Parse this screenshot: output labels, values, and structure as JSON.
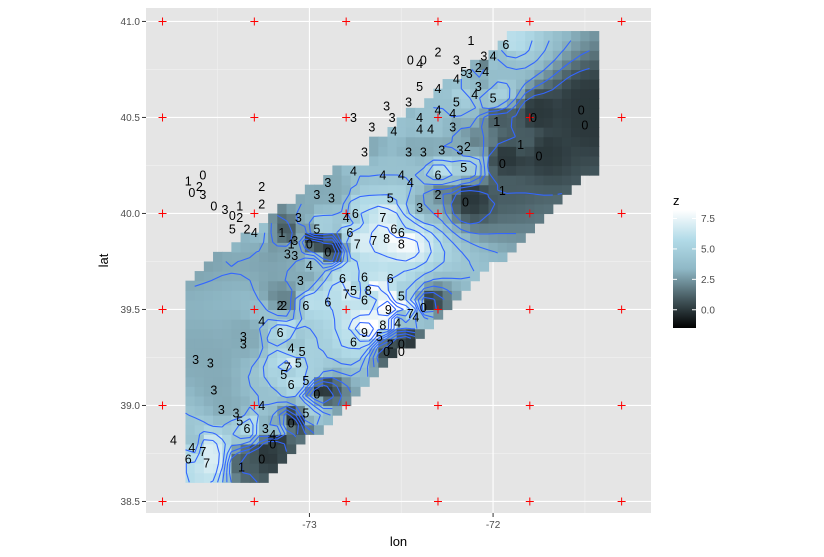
{
  "chart_data": {
    "type": "heatmap",
    "title": "",
    "xlabel": "lon",
    "ylabel": "lat",
    "xlim": [
      -73.89,
      -71.14
    ],
    "ylim": [
      38.44,
      41.07
    ],
    "x_ticks": [
      -73,
      -72
    ],
    "x_tick_labels": [
      "-73",
      "-72"
    ],
    "y_ticks": [
      38.5,
      39.0,
      39.5,
      40.0,
      40.5,
      41.0
    ],
    "y_tick_labels": [
      "38.5",
      "39.0",
      "39.5",
      "40.0",
      "40.5",
      "41.0"
    ],
    "grid": true,
    "panel_background": "#e5e5e5",
    "legend": {
      "title": "z",
      "position": "right",
      "breaks": [
        0,
        2.5,
        5,
        7.5
      ],
      "labels": [
        "0.0",
        "2.5",
        "5.0",
        "7.5"
      ],
      "limits": [
        -1.5,
        8.2
      ],
      "colors": [
        "#000000",
        "#465a60",
        "#8fb8c6",
        "#b2dbe8",
        "#ffffff"
      ]
    },
    "contour_color": "#3366ff",
    "grid_points_color": "#ff0000",
    "grid_points": {
      "lon": [
        -73.8,
        -73.3,
        -72.8,
        -72.3,
        -71.8,
        -71.3
      ],
      "lat": [
        38.5,
        39.0,
        39.5,
        40.0,
        40.5,
        41.0
      ]
    },
    "observations": [
      {
        "lon": -72.12,
        "lat": 40.9,
        "z": 1
      },
      {
        "lon": -71.93,
        "lat": 40.88,
        "z": 6
      },
      {
        "lon": -72.45,
        "lat": 40.8,
        "z": 0
      },
      {
        "lon": -72.38,
        "lat": 40.8,
        "z": 0
      },
      {
        "lon": -72.4,
        "lat": 40.78,
        "z": 4
      },
      {
        "lon": -72.2,
        "lat": 40.8,
        "z": 3
      },
      {
        "lon": -72.3,
        "lat": 40.84,
        "z": 2
      },
      {
        "lon": -72.08,
        "lat": 40.76,
        "z": 2
      },
      {
        "lon": -72.16,
        "lat": 40.74,
        "z": 5
      },
      {
        "lon": -72.04,
        "lat": 40.74,
        "z": 4
      },
      {
        "lon": -72.13,
        "lat": 40.73,
        "z": 3
      },
      {
        "lon": -72.05,
        "lat": 40.82,
        "z": 3
      },
      {
        "lon": -72.0,
        "lat": 40.82,
        "z": 4
      },
      {
        "lon": -72.2,
        "lat": 40.7,
        "z": 4
      },
      {
        "lon": -72.4,
        "lat": 40.66,
        "z": 5
      },
      {
        "lon": -72.2,
        "lat": 40.58,
        "z": 5
      },
      {
        "lon": -72.3,
        "lat": 40.65,
        "z": 4
      },
      {
        "lon": -72.1,
        "lat": 40.62,
        "z": 4
      },
      {
        "lon": -72.08,
        "lat": 40.66,
        "z": 3
      },
      {
        "lon": -72.0,
        "lat": 40.6,
        "z": 5
      },
      {
        "lon": -72.58,
        "lat": 40.56,
        "z": 3
      },
      {
        "lon": -72.55,
        "lat": 40.5,
        "z": 3
      },
      {
        "lon": -72.46,
        "lat": 40.58,
        "z": 3
      },
      {
        "lon": -72.4,
        "lat": 40.5,
        "z": 4
      },
      {
        "lon": -72.3,
        "lat": 40.54,
        "z": 4
      },
      {
        "lon": -72.22,
        "lat": 40.52,
        "z": 4
      },
      {
        "lon": -72.34,
        "lat": 40.44,
        "z": 4
      },
      {
        "lon": -72.22,
        "lat": 40.45,
        "z": 3
      },
      {
        "lon": -72.4,
        "lat": 40.44,
        "z": 4
      },
      {
        "lon": -72.76,
        "lat": 40.5,
        "z": 3
      },
      {
        "lon": -72.66,
        "lat": 40.45,
        "z": 3
      },
      {
        "lon": -72.54,
        "lat": 40.43,
        "z": 4
      },
      {
        "lon": -71.98,
        "lat": 40.48,
        "z": 1
      },
      {
        "lon": -71.78,
        "lat": 40.5,
        "z": 0
      },
      {
        "lon": -71.52,
        "lat": 40.54,
        "z": 0
      },
      {
        "lon": -71.5,
        "lat": 40.46,
        "z": 0
      },
      {
        "lon": -72.38,
        "lat": 40.32,
        "z": 3
      },
      {
        "lon": -72.28,
        "lat": 40.33,
        "z": 3
      },
      {
        "lon": -72.46,
        "lat": 40.32,
        "z": 3
      },
      {
        "lon": -72.18,
        "lat": 40.33,
        "z": 3
      },
      {
        "lon": -72.14,
        "lat": 40.35,
        "z": 2
      },
      {
        "lon": -72.7,
        "lat": 40.32,
        "z": 3
      },
      {
        "lon": -71.85,
        "lat": 40.36,
        "z": 1
      },
      {
        "lon": -71.75,
        "lat": 40.3,
        "z": 0
      },
      {
        "lon": -71.95,
        "lat": 40.26,
        "z": 0
      },
      {
        "lon": -72.16,
        "lat": 40.24,
        "z": 5
      },
      {
        "lon": -72.3,
        "lat": 40.2,
        "z": 6
      },
      {
        "lon": -72.5,
        "lat": 40.2,
        "z": 4
      },
      {
        "lon": -72.6,
        "lat": 40.2,
        "z": 4
      },
      {
        "lon": -72.76,
        "lat": 40.22,
        "z": 4
      },
      {
        "lon": -72.9,
        "lat": 40.16,
        "z": 3
      },
      {
        "lon": -72.96,
        "lat": 40.1,
        "z": 3
      },
      {
        "lon": -72.88,
        "lat": 40.08,
        "z": 3
      },
      {
        "lon": -72.45,
        "lat": 40.16,
        "z": 4
      },
      {
        "lon": -72.56,
        "lat": 40.08,
        "z": 5
      },
      {
        "lon": -72.4,
        "lat": 40.03,
        "z": 3
      },
      {
        "lon": -72.3,
        "lat": 40.1,
        "z": 2
      },
      {
        "lon": -72.15,
        "lat": 40.06,
        "z": 0
      },
      {
        "lon": -71.95,
        "lat": 40.12,
        "z": 1
      },
      {
        "lon": -73.26,
        "lat": 40.14,
        "z": 2
      },
      {
        "lon": -73.26,
        "lat": 40.05,
        "z": 2
      },
      {
        "lon": -73.38,
        "lat": 40.04,
        "z": 1
      },
      {
        "lon": -73.58,
        "lat": 40.2,
        "z": 0
      },
      {
        "lon": -73.6,
        "lat": 40.14,
        "z": 2
      },
      {
        "lon": -73.66,
        "lat": 40.17,
        "z": 1
      },
      {
        "lon": -73.64,
        "lat": 40.11,
        "z": 0
      },
      {
        "lon": -73.58,
        "lat": 40.1,
        "z": 3
      },
      {
        "lon": -73.52,
        "lat": 40.04,
        "z": 0
      },
      {
        "lon": -73.46,
        "lat": 40.02,
        "z": 3
      },
      {
        "lon": -73.42,
        "lat": 39.99,
        "z": 0
      },
      {
        "lon": -73.38,
        "lat": 39.98,
        "z": 2
      },
      {
        "lon": -73.42,
        "lat": 39.92,
        "z": 5
      },
      {
        "lon": -73.34,
        "lat": 39.92,
        "z": 2
      },
      {
        "lon": -73.3,
        "lat": 39.9,
        "z": 4
      },
      {
        "lon": -73.06,
        "lat": 39.98,
        "z": 3
      },
      {
        "lon": -73.15,
        "lat": 39.9,
        "z": 1
      },
      {
        "lon": -73.08,
        "lat": 39.86,
        "z": 3
      },
      {
        "lon": -73.1,
        "lat": 39.84,
        "z": 1
      },
      {
        "lon": -72.96,
        "lat": 39.92,
        "z": 5
      },
      {
        "lon": -73.0,
        "lat": 39.84,
        "z": 0
      },
      {
        "lon": -72.8,
        "lat": 39.98,
        "z": 4
      },
      {
        "lon": -72.75,
        "lat": 40.0,
        "z": 6
      },
      {
        "lon": -72.6,
        "lat": 39.98,
        "z": 7
      },
      {
        "lon": -72.54,
        "lat": 39.92,
        "z": 6
      },
      {
        "lon": -72.5,
        "lat": 39.9,
        "z": 6
      },
      {
        "lon": -72.5,
        "lat": 39.84,
        "z": 8
      },
      {
        "lon": -72.65,
        "lat": 39.86,
        "z": 7
      },
      {
        "lon": -72.58,
        "lat": 39.87,
        "z": 8
      },
      {
        "lon": -72.78,
        "lat": 39.9,
        "z": 6
      },
      {
        "lon": -72.9,
        "lat": 39.8,
        "z": 0
      },
      {
        "lon": -72.74,
        "lat": 39.84,
        "z": 7
      },
      {
        "lon": -73.12,
        "lat": 39.79,
        "z": 3
      },
      {
        "lon": -73.08,
        "lat": 39.78,
        "z": 3
      },
      {
        "lon": -73.0,
        "lat": 39.73,
        "z": 4
      },
      {
        "lon": -73.05,
        "lat": 39.65,
        "z": 3
      },
      {
        "lon": -72.82,
        "lat": 39.66,
        "z": 6
      },
      {
        "lon": -72.76,
        "lat": 39.6,
        "z": 5
      },
      {
        "lon": -72.7,
        "lat": 39.67,
        "z": 6
      },
      {
        "lon": -72.7,
        "lat": 39.55,
        "z": 6
      },
      {
        "lon": -72.8,
        "lat": 39.58,
        "z": 7
      },
      {
        "lon": -72.68,
        "lat": 39.6,
        "z": 8
      },
      {
        "lon": -72.56,
        "lat": 39.66,
        "z": 6
      },
      {
        "lon": -72.5,
        "lat": 39.57,
        "z": 5
      },
      {
        "lon": -72.57,
        "lat": 39.5,
        "z": 9
      },
      {
        "lon": -72.45,
        "lat": 39.48,
        "z": 7
      },
      {
        "lon": -72.38,
        "lat": 39.51,
        "z": 0
      },
      {
        "lon": -72.42,
        "lat": 39.46,
        "z": 4
      },
      {
        "lon": -72.52,
        "lat": 39.43,
        "z": 4
      },
      {
        "lon": -72.6,
        "lat": 39.42,
        "z": 8
      },
      {
        "lon": -72.7,
        "lat": 39.38,
        "z": 9
      },
      {
        "lon": -72.76,
        "lat": 39.33,
        "z": 6
      },
      {
        "lon": -72.62,
        "lat": 39.36,
        "z": 5
      },
      {
        "lon": -72.56,
        "lat": 39.32,
        "z": 2
      },
      {
        "lon": -72.5,
        "lat": 39.32,
        "z": 0
      },
      {
        "lon": -72.5,
        "lat": 39.28,
        "z": 0
      },
      {
        "lon": -72.58,
        "lat": 39.28,
        "z": 0
      },
      {
        "lon": -73.16,
        "lat": 39.52,
        "z": 2
      },
      {
        "lon": -73.14,
        "lat": 39.52,
        "z": 2
      },
      {
        "lon": -73.02,
        "lat": 39.52,
        "z": 6
      },
      {
        "lon": -72.9,
        "lat": 39.54,
        "z": 6
      },
      {
        "lon": -73.26,
        "lat": 39.44,
        "z": 4
      },
      {
        "lon": -73.16,
        "lat": 39.38,
        "z": 6
      },
      {
        "lon": -73.36,
        "lat": 39.36,
        "z": 3
      },
      {
        "lon": -73.36,
        "lat": 39.32,
        "z": 3
      },
      {
        "lon": -73.1,
        "lat": 39.3,
        "z": 4
      },
      {
        "lon": -73.04,
        "lat": 39.28,
        "z": 5
      },
      {
        "lon": -73.12,
        "lat": 39.2,
        "z": 7
      },
      {
        "lon": -73.14,
        "lat": 39.16,
        "z": 5
      },
      {
        "lon": -73.06,
        "lat": 39.22,
        "z": 5
      },
      {
        "lon": -73.1,
        "lat": 39.11,
        "z": 6
      },
      {
        "lon": -73.02,
        "lat": 39.13,
        "z": 5
      },
      {
        "lon": -72.96,
        "lat": 39.06,
        "z": 0
      },
      {
        "lon": -73.62,
        "lat": 39.24,
        "z": 3
      },
      {
        "lon": -73.54,
        "lat": 39.22,
        "z": 3
      },
      {
        "lon": -73.52,
        "lat": 39.08,
        "z": 3
      },
      {
        "lon": -73.48,
        "lat": 38.98,
        "z": 3
      },
      {
        "lon": -73.4,
        "lat": 38.96,
        "z": 3
      },
      {
        "lon": -73.38,
        "lat": 38.92,
        "z": 5
      },
      {
        "lon": -73.26,
        "lat": 39.0,
        "z": 4
      },
      {
        "lon": -73.34,
        "lat": 38.88,
        "z": 6
      },
      {
        "lon": -73.24,
        "lat": 38.88,
        "z": 3
      },
      {
        "lon": -73.1,
        "lat": 38.91,
        "z": 0
      },
      {
        "lon": -73.02,
        "lat": 38.96,
        "z": 5
      },
      {
        "lon": -73.2,
        "lat": 38.85,
        "z": 4
      },
      {
        "lon": -73.2,
        "lat": 38.8,
        "z": 0
      },
      {
        "lon": -73.74,
        "lat": 38.82,
        "z": 4
      },
      {
        "lon": -73.64,
        "lat": 38.78,
        "z": 4
      },
      {
        "lon": -73.58,
        "lat": 38.76,
        "z": 7
      },
      {
        "lon": -73.66,
        "lat": 38.72,
        "z": 6
      },
      {
        "lon": -73.56,
        "lat": 38.7,
        "z": 7
      },
      {
        "lon": -73.37,
        "lat": 38.68,
        "z": 1
      },
      {
        "lon": -73.26,
        "lat": 38.72,
        "z": 0
      }
    ]
  }
}
